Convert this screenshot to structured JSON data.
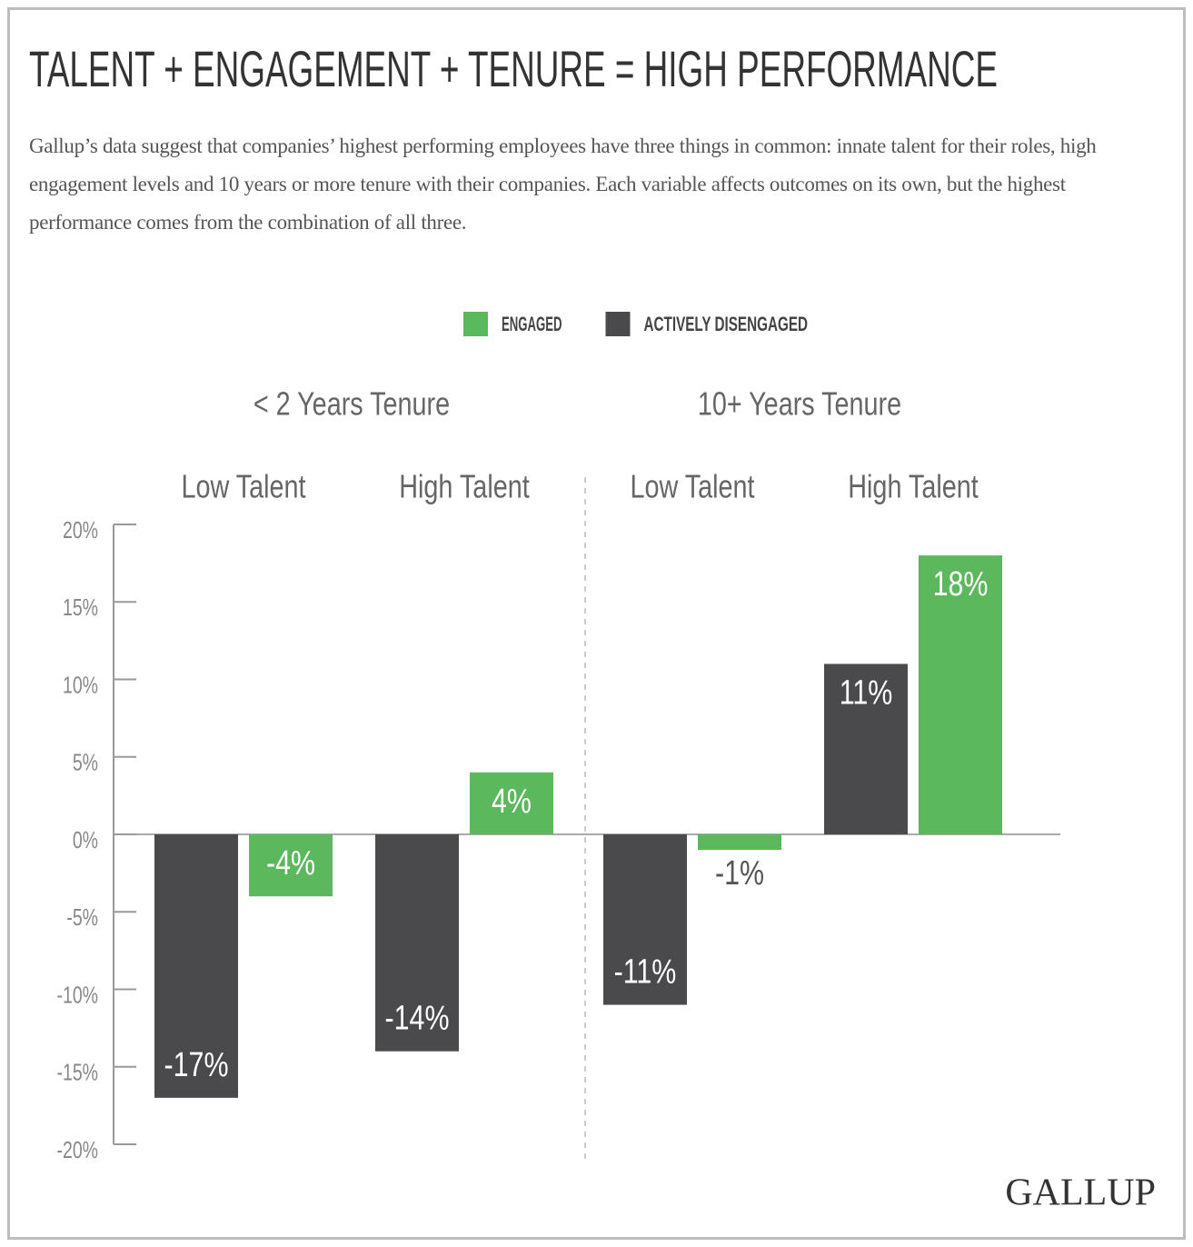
{
  "chart_data": {
    "type": "bar",
    "title": "TALENT + ENGAGEMENT + TENURE = HIGH PERFORMANCE",
    "subtitle": "Gallup’s data suggest that companies’ highest performing employees have three things in common: innate talent for their roles, high engagement levels and 10 years or more tenure with their companies. Each variable affects outcomes on its own, but the highest performance comes from the combination of all three.",
    "groups": [
      "< 2 Years Tenure",
      "10+ Years Tenure"
    ],
    "categories": [
      "Low Talent",
      "High Talent",
      "Low Talent",
      "High Talent"
    ],
    "series": [
      {
        "name": "ENGAGED",
        "color": "#5cb85c",
        "values": [
          -4,
          4,
          -1,
          18
        ],
        "value_labels": [
          "-4%",
          "4%",
          "-1%",
          "18%"
        ]
      },
      {
        "name": "ACTIVELY DISENGAGED",
        "color": "#4a4a4c",
        "values": [
          -17,
          -14,
          -11,
          11
        ],
        "value_labels": [
          "-17%",
          "-14%",
          "-11%",
          "11%"
        ]
      }
    ],
    "ylim": [
      -20,
      20
    ],
    "yticks": [
      {
        "value": 20,
        "label": "20%"
      },
      {
        "value": 15,
        "label": "15%"
      },
      {
        "value": 10,
        "label": "10%"
      },
      {
        "value": 5,
        "label": "5%"
      },
      {
        "value": 0,
        "label": "0%"
      },
      {
        "value": -5,
        "label": "-5%"
      },
      {
        "value": -10,
        "label": "-10%"
      },
      {
        "value": -15,
        "label": "-15%"
      },
      {
        "value": -20,
        "label": "-20%"
      }
    ],
    "legend": "top",
    "source": "GALLUP"
  }
}
